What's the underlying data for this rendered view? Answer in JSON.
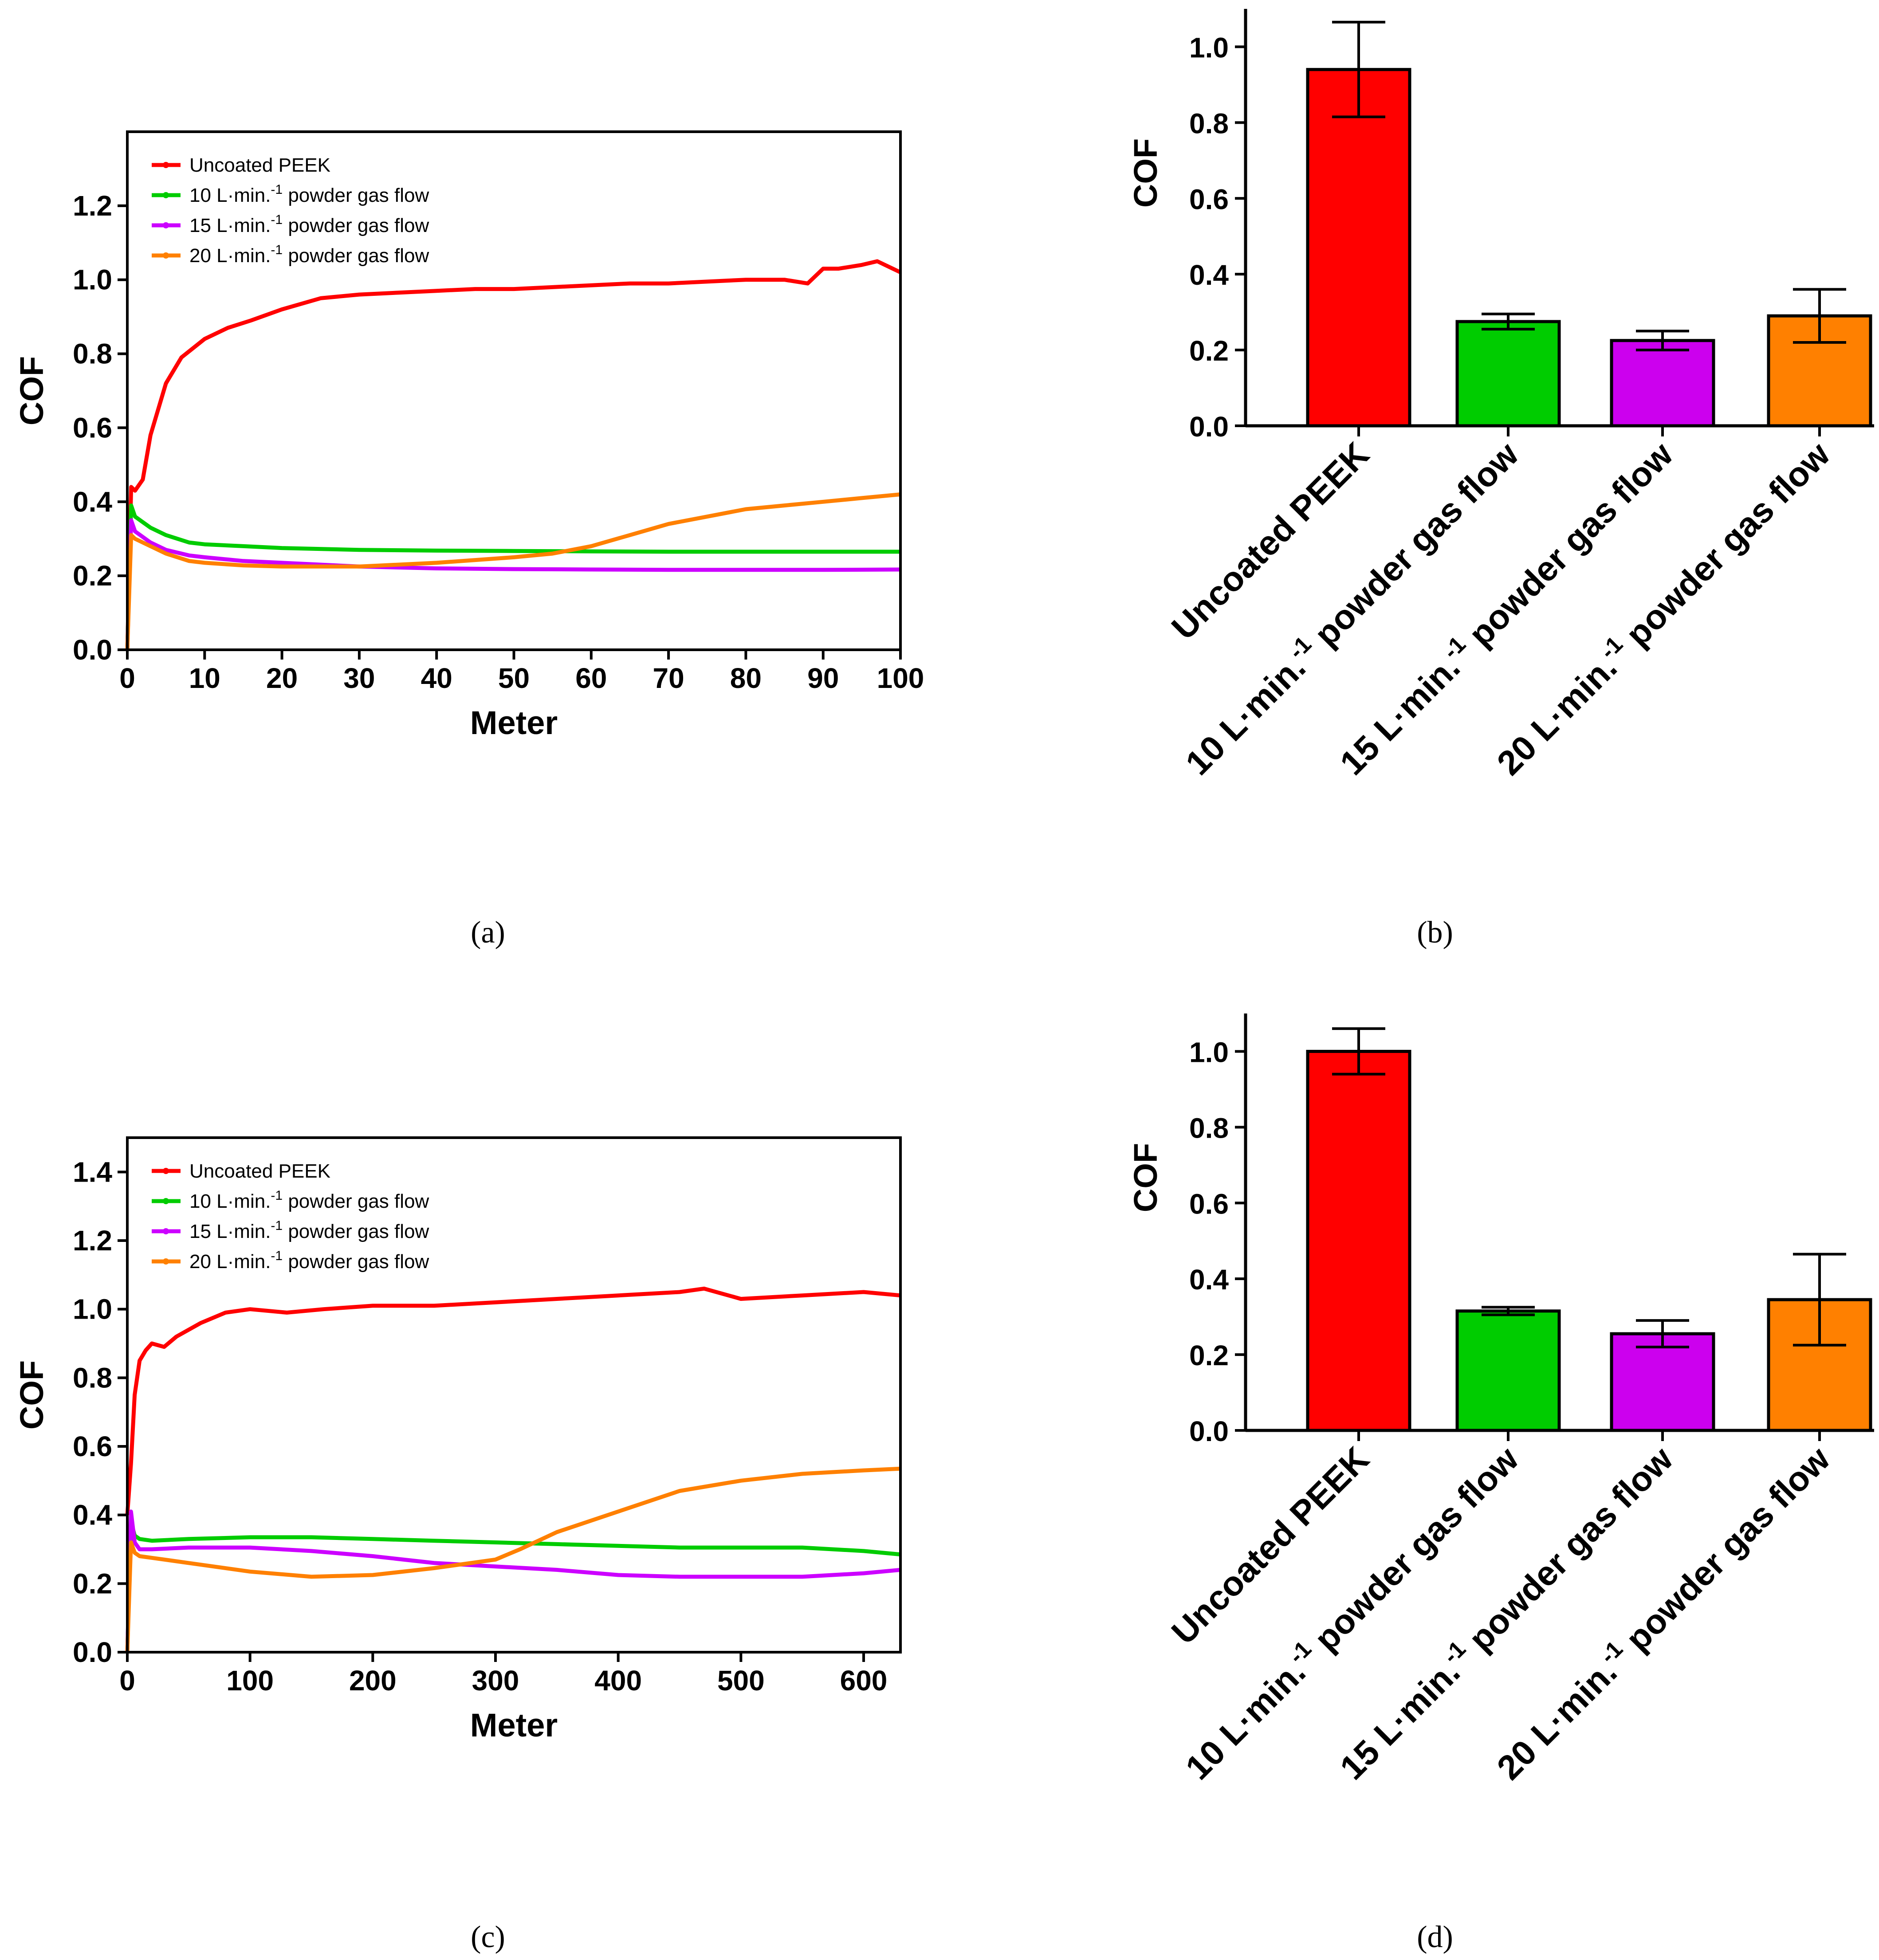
{
  "chart_data": [
    {
      "panel": "(a)",
      "type": "line",
      "xlabel": "Meter",
      "ylabel": "COF",
      "xlim": [
        0,
        100
      ],
      "ylim": [
        0,
        1.4
      ],
      "xticks": [
        "0",
        "10",
        "20",
        "30",
        "40",
        "50",
        "60",
        "70",
        "80",
        "90",
        "100"
      ],
      "yticks": [
        "0.0",
        "0.2",
        "0.4",
        "0.6",
        "0.8",
        "1.0",
        "1.2"
      ],
      "legend": "top-left",
      "series": [
        {
          "name": "Uncoated PEEK",
          "legend_main": "Uncoated PEEK",
          "legend_sup": "",
          "legend_tail": "",
          "color": "#ff0000",
          "x": [
            0,
            0.5,
            1,
            2,
            3,
            5,
            7,
            10,
            13,
            16,
            20,
            25,
            30,
            35,
            40,
            45,
            50,
            55,
            60,
            65,
            70,
            75,
            80,
            85,
            88,
            90,
            92,
            95,
            97,
            99,
            100
          ],
          "y": [
            0.0,
            0.44,
            0.43,
            0.46,
            0.58,
            0.72,
            0.79,
            0.84,
            0.87,
            0.89,
            0.92,
            0.95,
            0.96,
            0.965,
            0.97,
            0.975,
            0.975,
            0.98,
            0.985,
            0.99,
            0.99,
            0.995,
            1.0,
            1.0,
            0.99,
            1.03,
            1.03,
            1.04,
            1.05,
            1.03,
            1.02
          ]
        },
        {
          "name": "10 L·min.-1 powder gas flow",
          "legend_main": "10 L·min.",
          "legend_sup": "-1",
          "legend_tail": " powder gas flow",
          "color": "#00cc00",
          "x": [
            0,
            0.5,
            1,
            3,
            5,
            8,
            10,
            15,
            20,
            30,
            40,
            50,
            60,
            70,
            80,
            90,
            100
          ],
          "y": [
            0.0,
            0.39,
            0.36,
            0.33,
            0.31,
            0.29,
            0.285,
            0.28,
            0.275,
            0.27,
            0.268,
            0.267,
            0.266,
            0.265,
            0.265,
            0.265,
            0.265
          ]
        },
        {
          "name": "15 L·min.-1 powder gas flow",
          "legend_main": "15 L·min.",
          "legend_sup": "-1",
          "legend_tail": " powder gas flow",
          "color": "#cc00ff",
          "x": [
            0,
            0.5,
            1,
            3,
            5,
            8,
            10,
            15,
            20,
            30,
            40,
            50,
            60,
            70,
            80,
            90,
            100
          ],
          "y": [
            0.0,
            0.35,
            0.32,
            0.29,
            0.27,
            0.255,
            0.25,
            0.24,
            0.235,
            0.225,
            0.22,
            0.218,
            0.217,
            0.216,
            0.216,
            0.216,
            0.217
          ]
        },
        {
          "name": "20 L·min.-1 powder gas flow",
          "legend_main": "20 L·min.",
          "legend_sup": "-1",
          "legend_tail": " powder gas flow",
          "color": "#ff8000",
          "x": [
            0,
            0.5,
            1,
            3,
            5,
            8,
            10,
            15,
            20,
            30,
            40,
            50,
            55,
            60,
            65,
            70,
            75,
            80,
            85,
            90,
            95,
            100
          ],
          "y": [
            0.0,
            0.31,
            0.3,
            0.28,
            0.26,
            0.24,
            0.235,
            0.228,
            0.225,
            0.225,
            0.235,
            0.25,
            0.26,
            0.28,
            0.31,
            0.34,
            0.36,
            0.38,
            0.39,
            0.4,
            0.41,
            0.42
          ]
        }
      ]
    },
    {
      "panel": "(b)",
      "type": "bar",
      "ylabel": "COF",
      "ylim": [
        0,
        1.1
      ],
      "yticks": [
        "0.0",
        "0.2",
        "0.4",
        "0.6",
        "0.8",
        "1.0"
      ],
      "categories": [
        {
          "main": "Uncoated PEEK",
          "sup": "",
          "tail": ""
        },
        {
          "main": "10 L·min.",
          "sup": "-1",
          "tail": "  powder gas flow"
        },
        {
          "main": "15 L·min.",
          "sup": "-1",
          "tail": "  powder gas flow"
        },
        {
          "main": "20 L·min.",
          "sup": "-1",
          "tail": "  powder gas flow"
        }
      ],
      "values": [
        0.94,
        0.275,
        0.225,
        0.29
      ],
      "errors": [
        0.125,
        0.02,
        0.025,
        0.07
      ],
      "colors": [
        "#ff0000",
        "#00cc00",
        "#cc00ee",
        "#ff8000"
      ]
    },
    {
      "panel": "(c)",
      "type": "line",
      "xlabel": "Meter",
      "ylabel": "COF",
      "xlim": [
        0,
        630
      ],
      "ylim": [
        0,
        1.5
      ],
      "xticks": [
        "0",
        "100",
        "200",
        "300",
        "400",
        "500",
        "600"
      ],
      "yticks": [
        "0.0",
        "0.2",
        "0.4",
        "0.6",
        "0.8",
        "1.0",
        "1.2",
        "1.4"
      ],
      "legend": "top-left",
      "series": [
        {
          "name": "Uncoated PEEK",
          "legend_main": "Uncoated PEEK",
          "legend_sup": "",
          "legend_tail": "",
          "color": "#ff0000",
          "x": [
            0,
            3,
            6,
            10,
            15,
            20,
            30,
            40,
            60,
            80,
            100,
            130,
            160,
            200,
            250,
            300,
            350,
            400,
            450,
            470,
            500,
            550,
            600,
            630
          ],
          "y": [
            0.4,
            0.55,
            0.75,
            0.85,
            0.88,
            0.9,
            0.89,
            0.92,
            0.96,
            0.99,
            1.0,
            0.99,
            1.0,
            1.01,
            1.01,
            1.02,
            1.03,
            1.04,
            1.05,
            1.06,
            1.03,
            1.04,
            1.05,
            1.04
          ]
        },
        {
          "name": "10 L·min.-1 powder gas flow",
          "legend_main": "10 L·min.",
          "legend_sup": "-1",
          "legend_tail": " powder gas flow",
          "color": "#00cc00",
          "x": [
            0,
            3,
            6,
            10,
            20,
            50,
            100,
            150,
            200,
            250,
            300,
            350,
            400,
            450,
            500,
            550,
            600,
            630
          ],
          "y": [
            0.0,
            0.38,
            0.34,
            0.33,
            0.325,
            0.33,
            0.335,
            0.335,
            0.33,
            0.325,
            0.32,
            0.315,
            0.31,
            0.305,
            0.305,
            0.305,
            0.295,
            0.285
          ]
        },
        {
          "name": "15 L·min.-1 powder gas flow",
          "legend_main": "15 L·min.",
          "legend_sup": "-1",
          "legend_tail": " powder gas flow",
          "color": "#cc00ff",
          "x": [
            0,
            3,
            6,
            10,
            20,
            50,
            100,
            150,
            200,
            250,
            300,
            350,
            400,
            450,
            500,
            550,
            600,
            630
          ],
          "y": [
            0.0,
            0.41,
            0.32,
            0.3,
            0.3,
            0.305,
            0.305,
            0.295,
            0.28,
            0.26,
            0.25,
            0.24,
            0.225,
            0.22,
            0.22,
            0.22,
            0.23,
            0.24
          ]
        },
        {
          "name": "20 L·min.-1 powder gas flow",
          "legend_main": "20 L·min.",
          "legend_sup": "-1",
          "legend_tail": " powder gas flow",
          "color": "#ff8000",
          "x": [
            0,
            3,
            6,
            10,
            20,
            50,
            100,
            150,
            200,
            250,
            300,
            320,
            350,
            400,
            450,
            500,
            550,
            600,
            630
          ],
          "y": [
            0.0,
            0.32,
            0.29,
            0.28,
            0.275,
            0.26,
            0.235,
            0.22,
            0.225,
            0.245,
            0.27,
            0.3,
            0.35,
            0.41,
            0.47,
            0.5,
            0.52,
            0.53,
            0.535
          ]
        }
      ]
    },
    {
      "panel": "(d)",
      "type": "bar",
      "ylabel": "COF",
      "ylim": [
        0,
        1.1
      ],
      "yticks": [
        "0.0",
        "0.2",
        "0.4",
        "0.6",
        "0.8",
        "1.0"
      ],
      "categories": [
        {
          "main": "Uncoated PEEK",
          "sup": "",
          "tail": ""
        },
        {
          "main": "10 L·min.",
          "sup": "-1",
          "tail": "  powder gas flow"
        },
        {
          "main": "15 L·min.",
          "sup": "-1",
          "tail": "  powder gas flow"
        },
        {
          "main": "20 L·min.",
          "sup": "-1",
          "tail": "  powder gas flow"
        }
      ],
      "values": [
        1.0,
        0.315,
        0.255,
        0.345
      ],
      "errors": [
        0.06,
        0.01,
        0.035,
        0.12
      ],
      "colors": [
        "#ff0000",
        "#00cc00",
        "#cc00ee",
        "#ff8000"
      ]
    }
  ]
}
